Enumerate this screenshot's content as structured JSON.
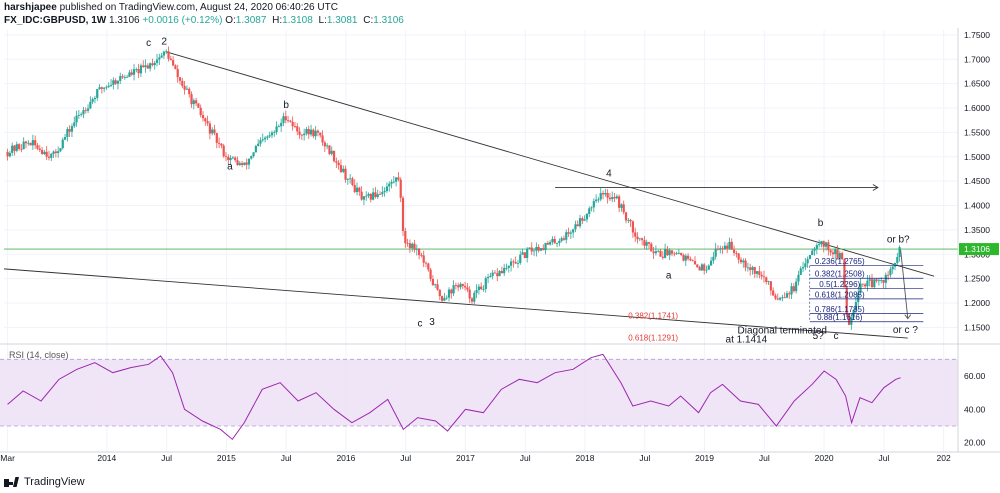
{
  "header": {
    "author": "harshjapee",
    "published_text": "published on TradingView.com, August 24, 2020 06:40:26 UTC",
    "symbol": "FX_IDC:GBPUSD, 1W",
    "price": "1.3106",
    "change": "+0.0016 (+0.12%)",
    "open_label": "O:",
    "open": "1.3087",
    "high_label": "H:",
    "high": "1.3108",
    "low_label": "L:",
    "low": "1.3081",
    "close_label": "C:",
    "close": "1.3106"
  },
  "footer": {
    "brand": "TradingView"
  },
  "colors": {
    "up": "#26a69a",
    "down": "#ef5350",
    "rsi_line": "#9c27b0",
    "rsi_band": "#e1bee7",
    "price_line": "#4caf50",
    "fib_blue": "#1a237e",
    "fib_red": "#e53935",
    "trendline": "#333333"
  },
  "chart_data": [
    {
      "type": "candlestick",
      "series_name": "FX_IDC:GBPUSD 1W",
      "y_axis": {
        "ylim": [
          1.12,
          1.76
        ],
        "ticks": [
          "1.7500",
          "1.7000",
          "1.6500",
          "1.6000",
          "1.5500",
          "1.5000",
          "1.4500",
          "1.4000",
          "1.3500",
          "1.3000",
          "1.2500",
          "1.2000",
          "1.1500"
        ],
        "last_price": "1.3106"
      },
      "x_axis": {
        "ticks": [
          "Mar",
          "2014",
          "Jul",
          "2015",
          "Jul",
          "2016",
          "Jul",
          "2017",
          "Jul",
          "2018",
          "Jul",
          "2019",
          "Jul",
          "2020",
          "Jul",
          "202"
        ],
        "tick_dates": [
          2013.17,
          2014.0,
          2014.5,
          2015.0,
          2015.5,
          2016.0,
          2016.5,
          2017.0,
          2017.5,
          2018.0,
          2018.5,
          2019.0,
          2019.5,
          2020.0,
          2020.5,
          2021.0
        ],
        "xlim": [
          2013.14,
          2021.12
        ]
      },
      "path": [
        [
          2013.17,
          1.51
        ],
        [
          2013.35,
          1.53
        ],
        [
          2013.55,
          1.5
        ],
        [
          2013.75,
          1.58
        ],
        [
          2013.95,
          1.64
        ],
        [
          2014.1,
          1.66
        ],
        [
          2014.3,
          1.68
        ],
        [
          2014.5,
          1.715
        ],
        [
          2014.6,
          1.66
        ],
        [
          2014.75,
          1.6
        ],
        [
          2014.85,
          1.56
        ],
        [
          2015.0,
          1.5
        ],
        [
          2015.15,
          1.48
        ],
        [
          2015.25,
          1.52
        ],
        [
          2015.4,
          1.55
        ],
        [
          2015.5,
          1.585
        ],
        [
          2015.6,
          1.55
        ],
        [
          2015.75,
          1.55
        ],
        [
          2015.9,
          1.5
        ],
        [
          2016.0,
          1.46
        ],
        [
          2016.15,
          1.41
        ],
        [
          2016.3,
          1.43
        ],
        [
          2016.45,
          1.46
        ],
        [
          2016.48,
          1.33
        ],
        [
          2016.6,
          1.31
        ],
        [
          2016.75,
          1.23
        ],
        [
          2016.8,
          1.21
        ],
        [
          2016.95,
          1.24
        ],
        [
          2017.05,
          1.21
        ],
        [
          2017.2,
          1.25
        ],
        [
          2017.4,
          1.28
        ],
        [
          2017.55,
          1.31
        ],
        [
          2017.7,
          1.32
        ],
        [
          2017.85,
          1.34
        ],
        [
          2018.0,
          1.38
        ],
        [
          2018.1,
          1.42
        ],
        [
          2018.25,
          1.42
        ],
        [
          2018.4,
          1.35
        ],
        [
          2018.5,
          1.32
        ],
        [
          2018.65,
          1.3
        ],
        [
          2018.75,
          1.31
        ],
        [
          2018.9,
          1.28
        ],
        [
          2019.0,
          1.27
        ],
        [
          2019.1,
          1.31
        ],
        [
          2019.2,
          1.32
        ],
        [
          2019.35,
          1.28
        ],
        [
          2019.5,
          1.25
        ],
        [
          2019.6,
          1.21
        ],
        [
          2019.75,
          1.23
        ],
        [
          2019.85,
          1.29
        ],
        [
          2019.95,
          1.33
        ],
        [
          2020.05,
          1.31
        ],
        [
          2020.15,
          1.29
        ],
        [
          2020.2,
          1.15
        ],
        [
          2020.3,
          1.24
        ],
        [
          2020.45,
          1.24
        ],
        [
          2020.55,
          1.26
        ],
        [
          2020.64,
          1.3106
        ]
      ]
    },
    {
      "type": "line",
      "series_name": "RSI (14, close)",
      "y_axis": {
        "ylim": [
          15,
          78
        ],
        "ticks": [
          "60.00",
          "40.00",
          "20.00"
        ],
        "band": [
          30,
          70
        ]
      },
      "path": [
        [
          2013.17,
          43
        ],
        [
          2013.3,
          51
        ],
        [
          2013.45,
          45
        ],
        [
          2013.6,
          58
        ],
        [
          2013.75,
          64
        ],
        [
          2013.9,
          68
        ],
        [
          2014.05,
          62
        ],
        [
          2014.2,
          65
        ],
        [
          2014.35,
          67
        ],
        [
          2014.45,
          72
        ],
        [
          2014.55,
          62
        ],
        [
          2014.65,
          40
        ],
        [
          2014.8,
          33
        ],
        [
          2014.95,
          28
        ],
        [
          2015.05,
          22
        ],
        [
          2015.15,
          32
        ],
        [
          2015.3,
          52
        ],
        [
          2015.45,
          56
        ],
        [
          2015.6,
          45
        ],
        [
          2015.75,
          50
        ],
        [
          2015.9,
          40
        ],
        [
          2016.05,
          32
        ],
        [
          2016.2,
          38
        ],
        [
          2016.35,
          46
        ],
        [
          2016.48,
          28
        ],
        [
          2016.6,
          35
        ],
        [
          2016.75,
          33
        ],
        [
          2016.85,
          27
        ],
        [
          2017.0,
          40
        ],
        [
          2017.15,
          38
        ],
        [
          2017.3,
          52
        ],
        [
          2017.45,
          58
        ],
        [
          2017.6,
          56
        ],
        [
          2017.75,
          62
        ],
        [
          2017.9,
          64
        ],
        [
          2018.05,
          71
        ],
        [
          2018.15,
          73
        ],
        [
          2018.3,
          56
        ],
        [
          2018.4,
          42
        ],
        [
          2018.55,
          45
        ],
        [
          2018.7,
          42
        ],
        [
          2018.8,
          48
        ],
        [
          2018.95,
          38
        ],
        [
          2019.05,
          50
        ],
        [
          2019.15,
          55
        ],
        [
          2019.3,
          45
        ],
        [
          2019.45,
          43
        ],
        [
          2019.6,
          30
        ],
        [
          2019.75,
          45
        ],
        [
          2019.9,
          55
        ],
        [
          2020.0,
          63
        ],
        [
          2020.1,
          58
        ],
        [
          2020.18,
          48
        ],
        [
          2020.23,
          32
        ],
        [
          2020.3,
          47
        ],
        [
          2020.4,
          44
        ],
        [
          2020.5,
          53
        ],
        [
          2020.6,
          58
        ],
        [
          2020.64,
          59
        ]
      ]
    }
  ],
  "annotations": {
    "wave_labels": [
      {
        "text": "c",
        "x": 2014.35,
        "y": 1.727
      },
      {
        "text": "2",
        "x": 2014.48,
        "y": 1.73
      },
      {
        "text": "b",
        "x": 2015.5,
        "y": 1.6
      },
      {
        "text": "a",
        "x": 2015.03,
        "y": 1.474
      },
      {
        "text": "c",
        "x": 2016.62,
        "y": 1.152
      },
      {
        "text": "3",
        "x": 2016.72,
        "y": 1.155
      },
      {
        "text": "4",
        "x": 2018.2,
        "y": 1.46
      },
      {
        "text": "a",
        "x": 2018.7,
        "y": 1.25
      },
      {
        "text": "b",
        "x": 2019.97,
        "y": 1.358
      },
      {
        "text": "or b?",
        "x": 2020.62,
        "y": 1.324
      },
      {
        "text": "or c ?",
        "x": 2020.68,
        "y": 1.138
      },
      {
        "text": "5?",
        "x": 2019.95,
        "y": 1.126
      },
      {
        "text": "c",
        "x": 2020.1,
        "y": 1.126
      }
    ],
    "fib_levels": [
      {
        "label": "0.236(1.2765)",
        "value": 1.2765
      },
      {
        "label": "0.382(1.2508)",
        "value": 1.2508
      },
      {
        "label": "0.5(1.2296)",
        "value": 1.2296
      },
      {
        "label": "0.618(1.2085)",
        "value": 1.2085
      },
      {
        "label": "0.786(1.1785)",
        "value": 1.1785
      },
      {
        "label": "0.88(1.1616)",
        "value": 1.1616
      }
    ],
    "fib_red": [
      {
        "label": "0.382(1.1741)",
        "value": 1.1741
      },
      {
        "label": "0.618(1.1291)",
        "value": 1.1291
      }
    ],
    "note_line1": "Diagonal terminated",
    "note_line2": "at 1.1414"
  }
}
